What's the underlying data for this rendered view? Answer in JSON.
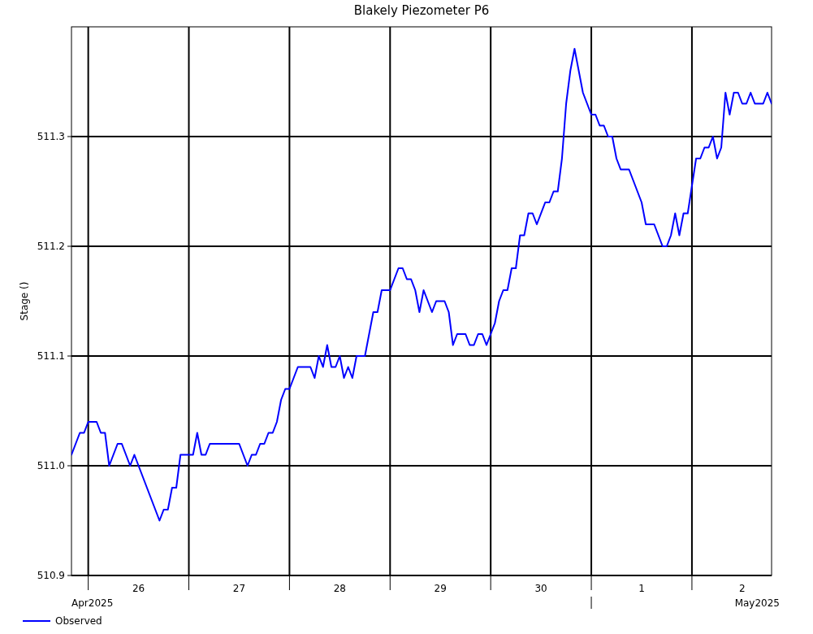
{
  "chart_data": {
    "type": "line",
    "title": "Blakely Piezometer P6",
    "ylabel": "Stage ()",
    "x": [
      "2025-04-25T20:00",
      "2025-04-25T22:00",
      "2025-04-25T23:00",
      "2025-04-26T00:00",
      "2025-04-26T02:00",
      "2025-04-26T03:00",
      "2025-04-26T04:00",
      "2025-04-26T05:00",
      "2025-04-26T07:00",
      "2025-04-26T08:00",
      "2025-04-26T10:00",
      "2025-04-26T11:00",
      "2025-04-26T17:00",
      "2025-04-26T18:00",
      "2025-04-26T19:00",
      "2025-04-26T20:00",
      "2025-04-26T21:00",
      "2025-04-26T22:00",
      "2025-04-27T01:00",
      "2025-04-27T02:00",
      "2025-04-27T03:00",
      "2025-04-27T04:00",
      "2025-04-27T05:00",
      "2025-04-27T12:00",
      "2025-04-27T14:00",
      "2025-04-27T15:00",
      "2025-04-27T16:00",
      "2025-04-27T17:00",
      "2025-04-27T18:00",
      "2025-04-27T19:00",
      "2025-04-27T20:00",
      "2025-04-27T21:00",
      "2025-04-27T22:00",
      "2025-04-27T23:00",
      "2025-04-28T00:00",
      "2025-04-28T01:00",
      "2025-04-28T02:00",
      "2025-04-28T05:00",
      "2025-04-28T06:00",
      "2025-04-28T07:00",
      "2025-04-28T08:00",
      "2025-04-28T09:00",
      "2025-04-28T10:00",
      "2025-04-28T11:00",
      "2025-04-28T12:00",
      "2025-04-28T13:00",
      "2025-04-28T14:00",
      "2025-04-28T15:00",
      "2025-04-28T16:00",
      "2025-04-28T18:00",
      "2025-04-28T20:00",
      "2025-04-28T21:00",
      "2025-04-28T22:00",
      "2025-04-29T00:00",
      "2025-04-29T02:00",
      "2025-04-29T03:00",
      "2025-04-29T04:00",
      "2025-04-29T05:00",
      "2025-04-29T06:00",
      "2025-04-29T07:00",
      "2025-04-29T08:00",
      "2025-04-29T10:00",
      "2025-04-29T11:00",
      "2025-04-29T13:00",
      "2025-04-29T14:00",
      "2025-04-29T15:00",
      "2025-04-29T16:00",
      "2025-04-29T18:00",
      "2025-04-29T19:00",
      "2025-04-29T20:00",
      "2025-04-29T21:00",
      "2025-04-29T22:00",
      "2025-04-29T23:00",
      "2025-04-30T00:00",
      "2025-04-30T01:00",
      "2025-04-30T02:00",
      "2025-04-30T03:00",
      "2025-04-30T04:00",
      "2025-04-30T05:00",
      "2025-04-30T06:00",
      "2025-04-30T07:00",
      "2025-04-30T08:00",
      "2025-04-30T09:00",
      "2025-04-30T10:00",
      "2025-04-30T11:00",
      "2025-04-30T13:00",
      "2025-04-30T14:00",
      "2025-04-30T15:00",
      "2025-04-30T16:00",
      "2025-04-30T17:00",
      "2025-04-30T18:00",
      "2025-04-30T19:00",
      "2025-04-30T20:00",
      "2025-04-30T22:00",
      "2025-05-01T00:00",
      "2025-05-01T01:00",
      "2025-05-01T02:00",
      "2025-05-01T03:00",
      "2025-05-01T04:00",
      "2025-05-01T05:00",
      "2025-05-01T06:00",
      "2025-05-01T07:00",
      "2025-05-01T09:00",
      "2025-05-01T10:00",
      "2025-05-01T12:00",
      "2025-05-01T13:00",
      "2025-05-01T15:00",
      "2025-05-01T17:00",
      "2025-05-01T18:00",
      "2025-05-01T19:00",
      "2025-05-01T20:00",
      "2025-05-01T21:00",
      "2025-05-01T22:00",
      "2025-05-01T23:00",
      "2025-05-02T01:00",
      "2025-05-02T02:00",
      "2025-05-02T03:00",
      "2025-05-02T04:00",
      "2025-05-02T05:00",
      "2025-05-02T06:00",
      "2025-05-02T07:00",
      "2025-05-02T08:00",
      "2025-05-02T09:00",
      "2025-05-02T10:00",
      "2025-05-02T11:00",
      "2025-05-02T12:00",
      "2025-05-02T13:00",
      "2025-05-02T14:00",
      "2025-05-02T15:00",
      "2025-05-02T17:00",
      "2025-05-02T18:00",
      "2025-05-02T19:00"
    ],
    "series": [
      {
        "name": "Observed",
        "color": "#0000ff",
        "values": [
          511.01,
          511.03,
          511.03,
          511.04,
          511.04,
          511.03,
          511.03,
          511.0,
          511.02,
          511.02,
          511.0,
          511.01,
          510.95,
          510.96,
          510.96,
          510.98,
          510.98,
          511.01,
          511.01,
          511.03,
          511.01,
          511.01,
          511.02,
          511.02,
          511.0,
          511.01,
          511.01,
          511.02,
          511.02,
          511.03,
          511.03,
          511.04,
          511.06,
          511.07,
          511.07,
          511.08,
          511.09,
          511.09,
          511.08,
          511.1,
          511.09,
          511.11,
          511.09,
          511.09,
          511.1,
          511.08,
          511.09,
          511.08,
          511.1,
          511.1,
          511.14,
          511.14,
          511.16,
          511.16,
          511.18,
          511.18,
          511.17,
          511.17,
          511.16,
          511.14,
          511.16,
          511.14,
          511.15,
          511.15,
          511.14,
          511.11,
          511.12,
          511.12,
          511.11,
          511.11,
          511.12,
          511.12,
          511.11,
          511.12,
          511.13,
          511.15,
          511.16,
          511.16,
          511.18,
          511.18,
          511.21,
          511.21,
          511.23,
          511.23,
          511.22,
          511.24,
          511.24,
          511.25,
          511.25,
          511.28,
          511.33,
          511.36,
          511.38,
          511.34,
          511.32,
          511.32,
          511.31,
          511.31,
          511.3,
          511.3,
          511.28,
          511.27,
          511.27,
          511.26,
          511.24,
          511.22,
          511.22,
          511.2,
          511.2,
          511.21,
          511.23,
          511.21,
          511.23,
          511.23,
          511.28,
          511.28,
          511.29,
          511.29,
          511.3,
          511.28,
          511.29,
          511.34,
          511.32,
          511.34,
          511.34,
          511.33,
          511.33,
          511.34,
          511.33,
          511.33,
          511.34,
          511.33
        ]
      }
    ],
    "xlim": [
      "2025-04-25T20:00",
      "2025-05-02T19:00"
    ],
    "xticks": [
      {
        "value": "2025-04-26T00:00",
        "label": null
      },
      {
        "value": "2025-04-26T12:00",
        "label": "26"
      },
      {
        "value": "2025-04-27T00:00",
        "label": null
      },
      {
        "value": "2025-04-27T12:00",
        "label": "27"
      },
      {
        "value": "2025-04-28T00:00",
        "label": null
      },
      {
        "value": "2025-04-28T12:00",
        "label": "28"
      },
      {
        "value": "2025-04-29T00:00",
        "label": null
      },
      {
        "value": "2025-04-29T12:00",
        "label": "29"
      },
      {
        "value": "2025-04-30T00:00",
        "label": null
      },
      {
        "value": "2025-04-30T12:00",
        "label": "30"
      },
      {
        "value": "2025-05-01T00:00",
        "label": null
      },
      {
        "value": "2025-05-01T12:00",
        "label": "1"
      },
      {
        "value": "2025-05-02T00:00",
        "label": null
      },
      {
        "value": "2025-05-02T12:00",
        "label": "2"
      }
    ],
    "ylim": [
      510.9,
      511.4
    ],
    "yticks": [
      510.9,
      {
        "value": 511,
        "label": "511.0"
      },
      511.1,
      511.2,
      511.3
    ],
    "grid": true,
    "legend": "bottom left",
    "line_style": "solid",
    "annotations": [
      "Apr2025",
      "May2025"
    ]
  }
}
